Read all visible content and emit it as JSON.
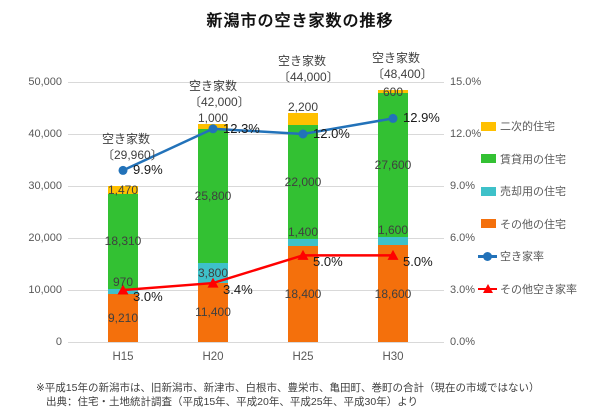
{
  "title": "新潟市の空き家数の推移",
  "footnote": {
    "line1": "※平成15年の新潟市は、旧新潟市、新津市、白根市、豊栄市、亀田町、巻町の合計（現在の市域ではない）",
    "line2": "出典：住宅・土地統計調査（平成15年、平成20年、平成25年、平成30年）より"
  },
  "colors": {
    "secondary_housing": "#FFC000",
    "rental_housing": "#33C133",
    "sale_housing": "#3EC1C9",
    "other_housing": "#F4700C",
    "vacancy_rate_line": "#2272B9",
    "other_vacancy_rate_line": "#FF0000",
    "grid": "#D9D9D9",
    "axis_text": "#595959"
  },
  "chart_data": {
    "type": "bar",
    "subtype": "stacked-bar-with-lines",
    "categories": [
      "H15",
      "H20",
      "H25",
      "H30"
    ],
    "bar_series": [
      {
        "name": "その他の住宅",
        "color_key": "other_housing",
        "values": [
          9210,
          11400,
          18400,
          18600
        ],
        "labels": [
          "9,210",
          "11,400",
          "18,400",
          "18,600"
        ]
      },
      {
        "name": "売却用の住宅",
        "color_key": "sale_housing",
        "values": [
          970,
          3800,
          1400,
          1600
        ],
        "labels": [
          "970",
          "3,800",
          "1,400",
          "1,600"
        ]
      },
      {
        "name": "賃貸用の住宅",
        "color_key": "rental_housing",
        "values": [
          18310,
          25800,
          22000,
          27600
        ],
        "labels": [
          "18,310",
          "25,800",
          "22,000",
          "27,600"
        ]
      },
      {
        "name": "二次的住宅",
        "color_key": "secondary_housing",
        "values": [
          1470,
          1000,
          2200,
          600
        ],
        "labels": [
          "1,470",
          "1,000",
          "2,200",
          "600"
        ]
      }
    ],
    "line_series": [
      {
        "name": "空き家率",
        "color_key": "vacancy_rate_line",
        "marker": "circle",
        "values_pct": [
          9.9,
          12.3,
          12.0,
          12.9
        ],
        "labels": [
          "9.9%",
          "12.3%",
          "12.0%",
          "12.9%"
        ]
      },
      {
        "name": "その他空き家率",
        "color_key": "other_vacancy_rate_line",
        "marker": "triangle",
        "values_pct": [
          3.0,
          3.4,
          5.0,
          5.0
        ],
        "labels": [
          "3.0%",
          "3.4%",
          "5.0%",
          "5.0%"
        ]
      }
    ],
    "totals_annotations": [
      {
        "title": "空き家数",
        "value": "〔29,960〕"
      },
      {
        "title": "空き家数",
        "value": "〔42,000〕"
      },
      {
        "title": "空き家数",
        "value": "〔44,000〕"
      },
      {
        "title": "空き家数",
        "value": "〔48,400〕"
      }
    ],
    "left_axis": {
      "label": "",
      "ticks": [
        "50,000",
        "40,000",
        "30,000",
        "20,000",
        "10,000",
        "0"
      ],
      "min": 0,
      "max": 50000
    },
    "right_axis": {
      "label": "",
      "ticks": [
        "15.0%",
        "12.0%",
        "9.0%",
        "6.0%",
        "3.0%",
        "0.0%"
      ],
      "min": 0,
      "max": 15
    },
    "legend_entries": [
      "二次的住宅",
      "賃貸用の住宅",
      "売却用の住宅",
      "その他の住宅",
      "空き家率",
      "その他空き家率"
    ],
    "grid": "horizontal-only",
    "legend_position": "right"
  }
}
